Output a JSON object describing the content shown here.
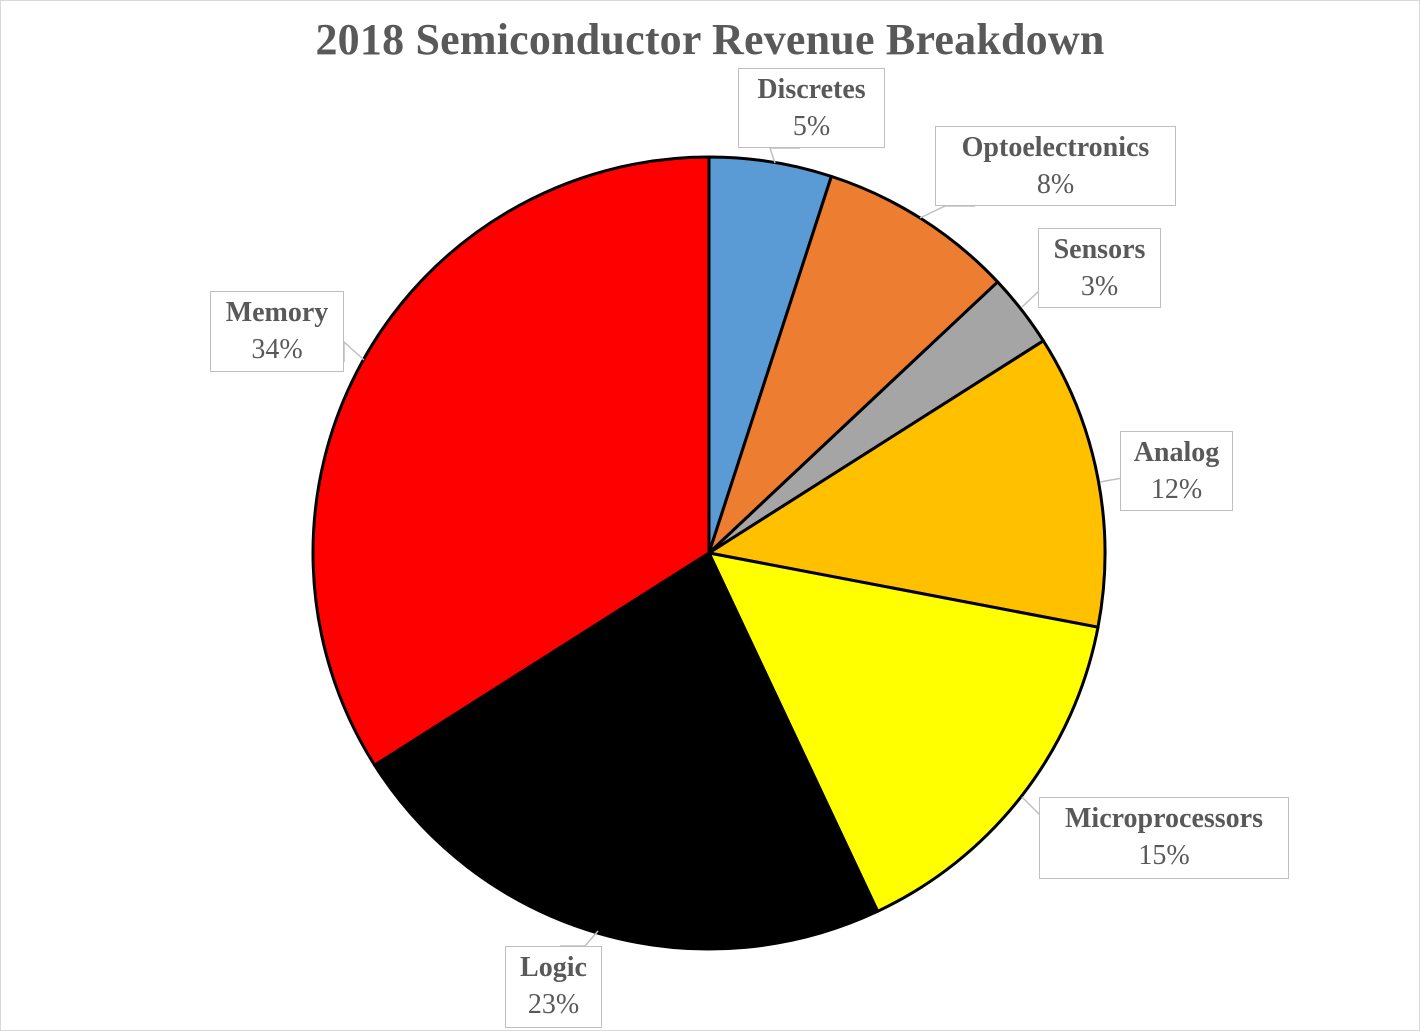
{
  "chart_data": {
    "type": "pie",
    "title": "2018 Semiconductor Revenue Breakdown",
    "start_angle_deg": 0,
    "direction": "clockwise",
    "slices": [
      {
        "label": "Discretes",
        "value": 5,
        "pct_label": "5%",
        "color": "#5B9BD5"
      },
      {
        "label": "Optoelectronics",
        "value": 8,
        "pct_label": "8%",
        "color": "#ED7D31"
      },
      {
        "label": "Sensors",
        "value": 3,
        "pct_label": "3%",
        "color": "#A5A5A5"
      },
      {
        "label": "Analog",
        "value": 12,
        "pct_label": "12%",
        "color": "#FFC000"
      },
      {
        "label": "Microprocessors",
        "value": 15,
        "pct_label": "15%",
        "color": "#FFFF00"
      },
      {
        "label": "Logic",
        "value": 23,
        "pct_label": "23%",
        "color": "#000000"
      },
      {
        "label": "Memory",
        "value": 34,
        "pct_label": "34%",
        "color": "#FF0000"
      }
    ],
    "legend": "none",
    "data_labels": "callouts with category name and percentage"
  }
}
